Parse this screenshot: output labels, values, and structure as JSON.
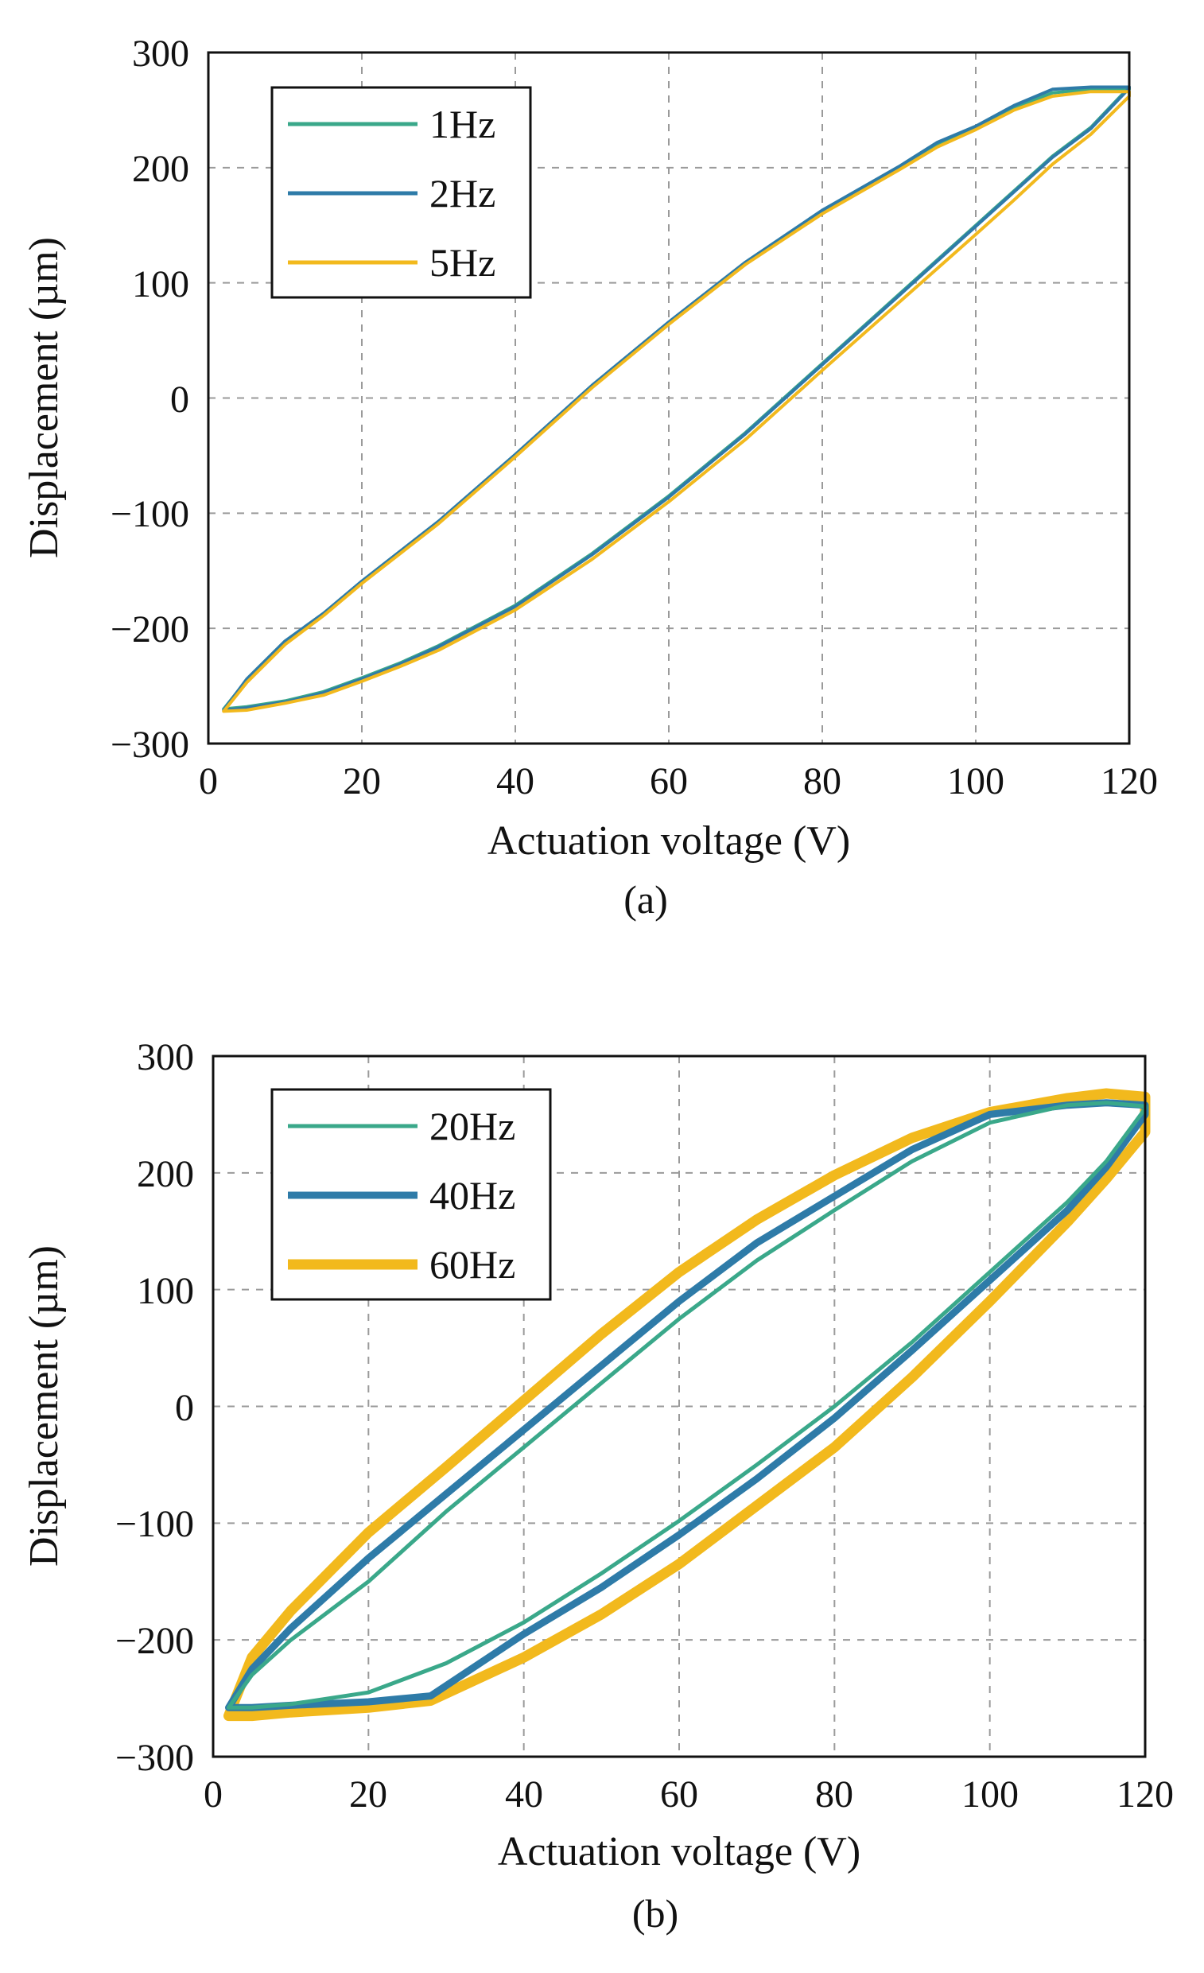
{
  "chart_data": [
    {
      "type": "line",
      "caption": "(a)",
      "xlabel": "Actuation voltage (V)",
      "ylabel": "Displacement (µm)",
      "xlim": [
        0,
        120
      ],
      "ylim": [
        -300,
        300
      ],
      "xticks": [
        0,
        20,
        40,
        60,
        80,
        100,
        120
      ],
      "yticks": [
        300,
        200,
        100,
        0,
        -100,
        -200,
        -300
      ],
      "xtick_labels": [
        "0",
        "20",
        "40",
        "60",
        "80",
        "100",
        "120"
      ],
      "ytick_labels": [
        "300",
        "200",
        "100",
        "0",
        "−100",
        "−200",
        "−300"
      ],
      "grid": true,
      "legend_position": "top-left",
      "series": [
        {
          "name": "1Hz",
          "color": "#3aa88a",
          "x": [
            2,
            5,
            10,
            15,
            20,
            25,
            30,
            40,
            50,
            60,
            70,
            80,
            90,
            100,
            105,
            110,
            115,
            120,
            120,
            115,
            110,
            105,
            100,
            95,
            90,
            80,
            70,
            60,
            50,
            40,
            30,
            20,
            15,
            10,
            5,
            2
          ],
          "y": [
            -270,
            -268,
            -263,
            -255,
            -243,
            -230,
            -215,
            -180,
            -135,
            -85,
            -30,
            30,
            90,
            150,
            180,
            210,
            235,
            270,
            268,
            268,
            265,
            252,
            235,
            220,
            200,
            162,
            117,
            65,
            10,
            -50,
            -108,
            -160,
            -188,
            -212,
            -245,
            -270
          ]
        },
        {
          "name": "2Hz",
          "color": "#2e7ba8",
          "x": [
            2,
            5,
            10,
            15,
            20,
            25,
            30,
            40,
            50,
            60,
            70,
            80,
            90,
            100,
            105,
            110,
            115,
            120,
            120,
            115,
            110,
            105,
            100,
            95,
            90,
            80,
            70,
            60,
            50,
            40,
            30,
            20,
            15,
            10,
            5,
            2
          ],
          "y": [
            -271,
            -269,
            -264,
            -256,
            -244,
            -231,
            -216,
            -181,
            -136,
            -86,
            -31,
            29,
            89,
            149,
            179,
            209,
            234,
            269,
            270,
            270,
            268,
            254,
            236,
            222,
            201,
            163,
            118,
            66,
            11,
            -49,
            -107,
            -159,
            -187,
            -211,
            -244,
            -271
          ]
        },
        {
          "name": "5Hz",
          "color": "#f2b91d",
          "x": [
            2,
            5,
            10,
            15,
            20,
            25,
            30,
            40,
            50,
            60,
            70,
            80,
            90,
            100,
            105,
            110,
            115,
            120,
            120,
            115,
            110,
            105,
            100,
            95,
            90,
            80,
            70,
            60,
            50,
            40,
            30,
            20,
            15,
            10,
            5,
            2
          ],
          "y": [
            -272,
            -271,
            -265,
            -258,
            -246,
            -233,
            -219,
            -184,
            -140,
            -90,
            -36,
            24,
            83,
            142,
            172,
            203,
            229,
            262,
            266,
            266,
            262,
            250,
            233,
            218,
            198,
            160,
            116,
            64,
            9,
            -51,
            -109,
            -161,
            -189,
            -214,
            -247,
            -272
          ]
        }
      ]
    },
    {
      "type": "line",
      "caption": "(b)",
      "xlabel": "Actuation voltage (V)",
      "ylabel": "Displacement (µm)",
      "xlim": [
        0,
        120
      ],
      "ylim": [
        -300,
        300
      ],
      "xticks": [
        0,
        20,
        40,
        60,
        80,
        100,
        120
      ],
      "yticks": [
        300,
        200,
        100,
        0,
        -100,
        -200,
        -300
      ],
      "xtick_labels": [
        "0",
        "20",
        "40",
        "60",
        "80",
        "100",
        "120"
      ],
      "ytick_labels": [
        "300",
        "200",
        "100",
        "0",
        "−100",
        "−200",
        "−300"
      ],
      "grid": true,
      "legend_position": "top-left",
      "series": [
        {
          "name": "20Hz",
          "color": "#3aa88a",
          "x": [
            2,
            5,
            10,
            20,
            30,
            40,
            50,
            60,
            70,
            80,
            90,
            100,
            110,
            115,
            120,
            120,
            115,
            110,
            100,
            90,
            80,
            70,
            60,
            50,
            40,
            30,
            20,
            10,
            5,
            2
          ],
          "y": [
            -258,
            -258,
            -255,
            -245,
            -220,
            -185,
            -143,
            -98,
            -50,
            0,
            55,
            115,
            175,
            210,
            255,
            257,
            260,
            258,
            243,
            210,
            168,
            125,
            75,
            20,
            -35,
            -90,
            -150,
            -200,
            -230,
            -258
          ]
        },
        {
          "name": "40Hz",
          "color": "#2e7ba8",
          "x": [
            2,
            5,
            10,
            20,
            28,
            40,
            50,
            60,
            70,
            80,
            90,
            100,
            110,
            115,
            120,
            120,
            115,
            110,
            100,
            90,
            80,
            70,
            60,
            50,
            40,
            30,
            20,
            10,
            5,
            2
          ],
          "y": [
            -258,
            -258,
            -256,
            -253,
            -248,
            -195,
            -155,
            -110,
            -62,
            -10,
            48,
            108,
            168,
            205,
            250,
            258,
            260,
            258,
            250,
            220,
            180,
            140,
            90,
            35,
            -20,
            -75,
            -130,
            -190,
            -225,
            -258
          ]
        },
        {
          "name": "60Hz",
          "color": "#f2b91d",
          "x": [
            2,
            5,
            10,
            20,
            28,
            40,
            50,
            60,
            70,
            80,
            90,
            100,
            110,
            115,
            120,
            120,
            115,
            110,
            100,
            90,
            80,
            70,
            60,
            50,
            40,
            30,
            20,
            10,
            5,
            2
          ],
          "y": [
            -265,
            -265,
            -262,
            -258,
            -252,
            -215,
            -178,
            -135,
            -85,
            -35,
            25,
            90,
            158,
            195,
            235,
            265,
            268,
            264,
            252,
            230,
            198,
            160,
            115,
            62,
            5,
            -52,
            -108,
            -175,
            -215,
            -265
          ]
        }
      ]
    }
  ]
}
